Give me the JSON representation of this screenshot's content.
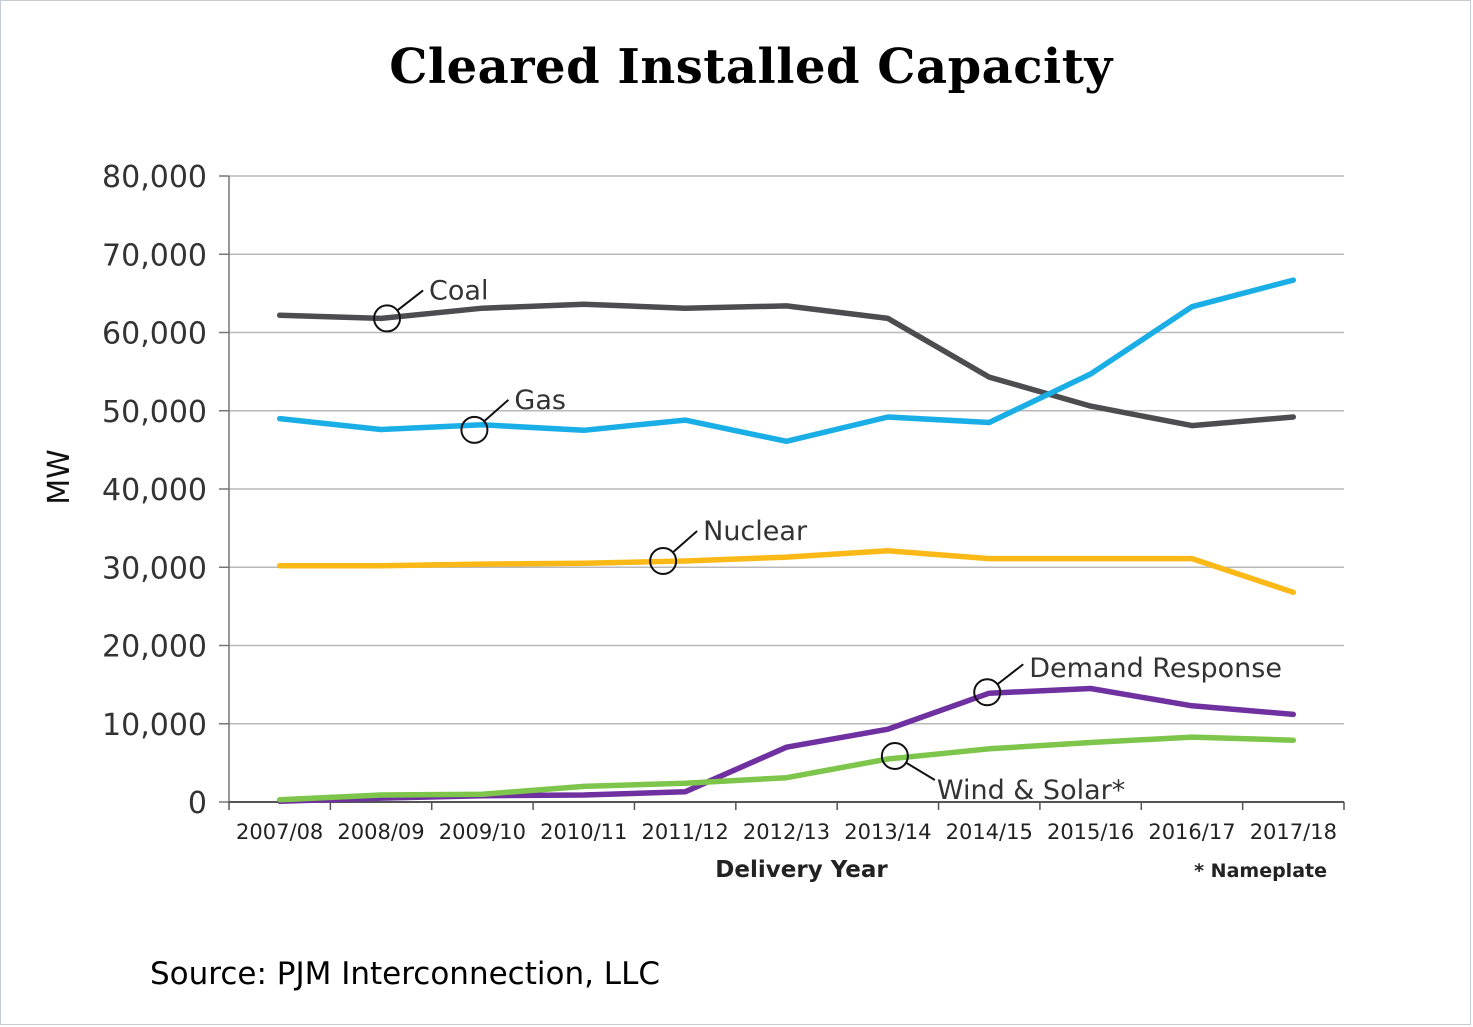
{
  "chart_data": {
    "type": "line",
    "title": "Cleared Installed Capacity",
    "xlabel": "Delivery Year",
    "ylabel": "MW",
    "ylim": [
      0,
      80000
    ],
    "yticks": [
      0,
      10000,
      20000,
      30000,
      40000,
      50000,
      60000,
      70000,
      80000
    ],
    "ytick_labels": [
      "0",
      "10,000",
      "20,000",
      "30,000",
      "40,000",
      "50,000",
      "60,000",
      "70,000",
      "80,000"
    ],
    "categories": [
      "2007/08",
      "2008/09",
      "2009/10",
      "2010/11",
      "2011/12",
      "2012/13",
      "2013/14",
      "2014/15",
      "2015/16",
      "2016/17",
      "2017/18"
    ],
    "grid": "horizontal",
    "series": [
      {
        "name": "Coal",
        "color": "#4d4d4f",
        "values": [
          62200,
          61800,
          63100,
          63600,
          63100,
          63400,
          61800,
          54300,
          50600,
          48100,
          49200
        ]
      },
      {
        "name": "Gas",
        "color": "#1aaee6",
        "values": [
          49000,
          47600,
          48200,
          47500,
          48800,
          46100,
          49200,
          48500,
          54700,
          63300,
          66700
        ]
      },
      {
        "name": "Nuclear",
        "color": "#fbb918",
        "values": [
          30200,
          30200,
          30400,
          30500,
          30800,
          31300,
          32100,
          31100,
          31100,
          31100,
          26800
        ]
      },
      {
        "name": "Demand Response",
        "color": "#6f30a0",
        "values": [
          100,
          500,
          800,
          900,
          1300,
          7000,
          9300,
          13900,
          14500,
          12300,
          11200
        ]
      },
      {
        "name": "Wind & Solar*",
        "color": "#7ec54b",
        "values": [
          300,
          900,
          1000,
          2000,
          2400,
          3100,
          5500,
          6800,
          7600,
          8300,
          7900
        ]
      }
    ],
    "annotations": [
      {
        "label": "Coal",
        "series": "Coal",
        "x": "2008/09"
      },
      {
        "label": "Gas",
        "series": "Gas",
        "x": "2009/10"
      },
      {
        "label": "Nuclear",
        "series": "Nuclear",
        "x": "2011/12"
      },
      {
        "label": "Demand Response",
        "series": "Demand Response",
        "x": "2014/15"
      },
      {
        "label": "Wind & Solar*",
        "series": "Wind & Solar*",
        "x": "2013/14"
      }
    ],
    "footnote": "* Nameplate"
  },
  "source": "Source: PJM Interconnection, LLC"
}
